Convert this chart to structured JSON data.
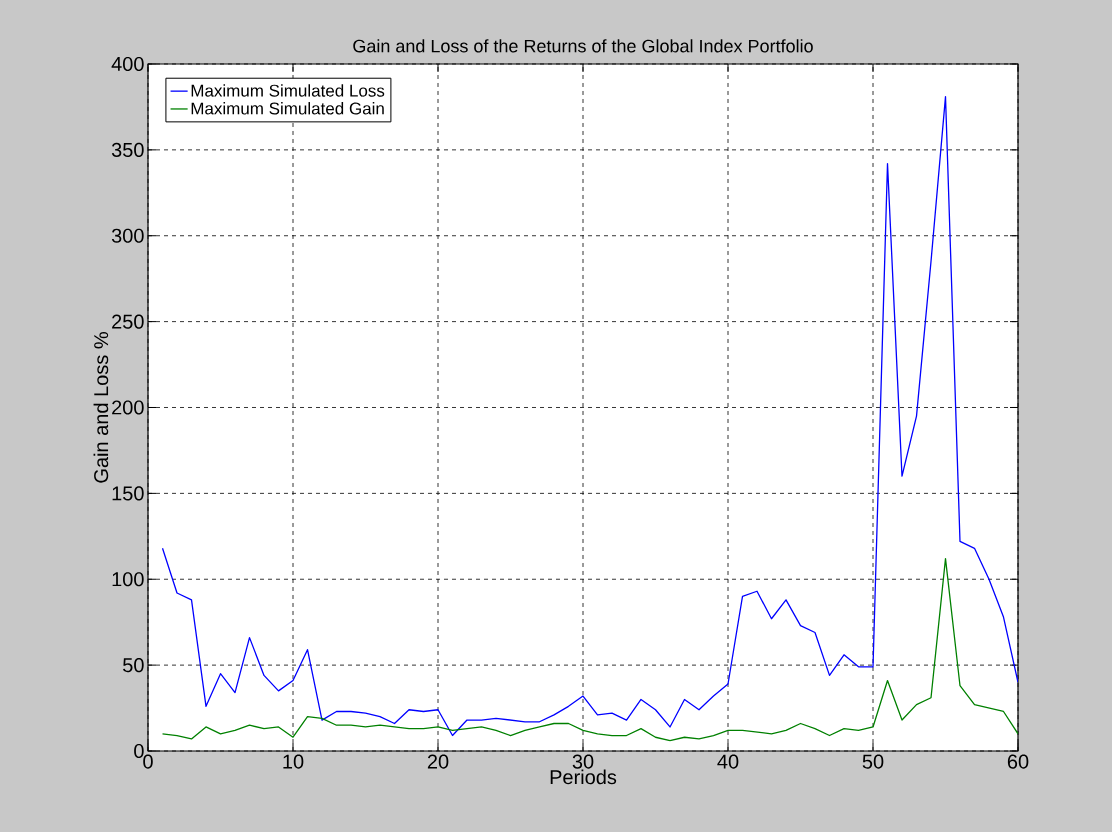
{
  "chart_data": {
    "type": "line",
    "title": "Gain and Loss of the Returns of the Global Index Portfolio",
    "xlabel": "Periods",
    "ylabel": "Gain and Loss %",
    "x": [
      1,
      2,
      3,
      4,
      5,
      6,
      7,
      8,
      9,
      10,
      11,
      12,
      13,
      14,
      15,
      16,
      17,
      18,
      19,
      20,
      21,
      22,
      23,
      24,
      25,
      26,
      27,
      28,
      29,
      30,
      31,
      32,
      33,
      34,
      35,
      36,
      37,
      38,
      39,
      40,
      41,
      42,
      43,
      44,
      45,
      46,
      47,
      48,
      49,
      50,
      51,
      52,
      53,
      54,
      55,
      56,
      57,
      58,
      59,
      60
    ],
    "series": [
      {
        "name": "Maximum Simulated Loss",
        "color": "#0000ff",
        "values": [
          118,
          92,
          88,
          26,
          45,
          34,
          66,
          44,
          35,
          41,
          59,
          18,
          23,
          23,
          22,
          20,
          16,
          24,
          23,
          24,
          9,
          18,
          18,
          19,
          18,
          17,
          17,
          21,
          26,
          32,
          21,
          22,
          18,
          30,
          24,
          14,
          30,
          24,
          32,
          39,
          90,
          93,
          77,
          88,
          73,
          69,
          44,
          56,
          49,
          49,
          342,
          160,
          195,
          285,
          381,
          122,
          118,
          100,
          78,
          40
        ]
      },
      {
        "name": "Maximum Simulated Gain",
        "color": "#008000",
        "values": [
          10,
          9,
          7,
          14,
          10,
          12,
          15,
          13,
          14,
          8,
          20,
          19,
          15,
          15,
          14,
          15,
          14,
          13,
          13,
          14,
          12,
          13,
          14,
          12,
          9,
          12,
          14,
          16,
          16,
          12,
          10,
          9,
          9,
          13,
          8,
          6,
          8,
          7,
          9,
          12,
          12,
          11,
          10,
          12,
          16,
          13,
          9,
          13,
          12,
          14,
          41,
          18,
          27,
          31,
          112,
          38,
          27,
          25,
          23,
          10
        ]
      }
    ],
    "xlim": [
      0,
      60
    ],
    "xticks": [
      0,
      10,
      20,
      30,
      40,
      50,
      60
    ],
    "ylim": [
      0,
      400
    ],
    "yticks": [
      0,
      50,
      100,
      150,
      200,
      250,
      300,
      350,
      400
    ],
    "grid": true,
    "legend": "top left",
    "marker": "none",
    "line_style": "solid"
  }
}
